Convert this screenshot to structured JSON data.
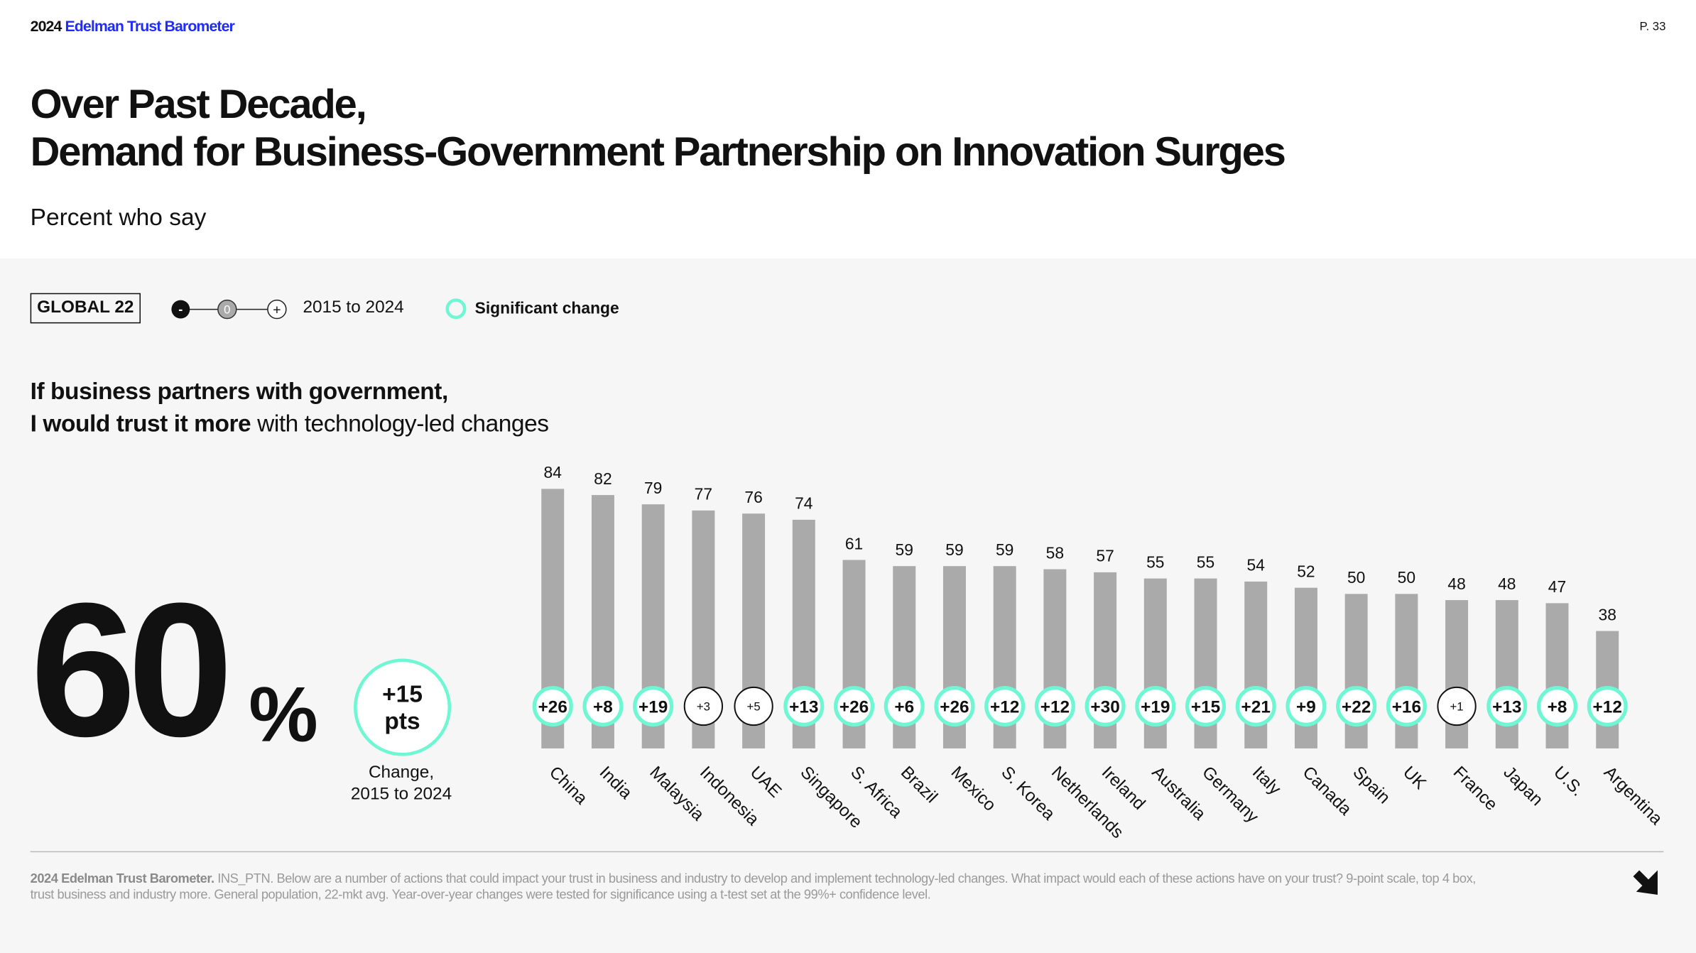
{
  "header": {
    "brand_year": "2024",
    "brand_name": "Edelman Trust Barometer",
    "page": "P. 33"
  },
  "title": {
    "line1": "Over Past Decade,",
    "line2": "Demand for Business-Government Partnership on Innovation Surges"
  },
  "subtitle": "Percent who say",
  "controls": {
    "global_label": "GLOBAL 22",
    "slider_minus": "-",
    "slider_zero": "0",
    "slider_plus": "+",
    "range_label": "2015 to 2024",
    "legend_significant": "Significant change"
  },
  "question": {
    "line1": "If business partners with government,",
    "line2_bold": "I would trust it more",
    "line2_rest": " with technology-led changes"
  },
  "global": {
    "value": "60",
    "unit": "%",
    "change_value": "+15",
    "change_unit": "pts",
    "caption_line1": "Change,",
    "caption_line2": "2015 to 2024"
  },
  "colors": {
    "bar": "#aaaaaa",
    "significant": "#6ff7d4",
    "brand": "#1f2bff"
  },
  "chart_data": {
    "type": "bar",
    "categories": [
      "China",
      "India",
      "Malaysia",
      "Indonesia",
      "UAE",
      "Singapore",
      "S. Africa",
      "Brazil",
      "Mexico",
      "S. Korea",
      "Netherlands",
      "Ireland",
      "Australia",
      "Germany",
      "Italy",
      "Canada",
      "Spain",
      "UK",
      "France",
      "Japan",
      "U.S.",
      "Argentina"
    ],
    "values": [
      84,
      82,
      79,
      77,
      76,
      74,
      61,
      59,
      59,
      59,
      58,
      57,
      55,
      55,
      54,
      52,
      50,
      50,
      48,
      48,
      47,
      38
    ],
    "changes": [
      "+26",
      "+8",
      "+19",
      "+3",
      "+5",
      "+13",
      "+26",
      "+6",
      "+26",
      "+12",
      "+12",
      "+30",
      "+19",
      "+15",
      "+21",
      "+9",
      "+22",
      "+16",
      "+1",
      "+13",
      "+8",
      "+12"
    ],
    "significant": [
      true,
      true,
      true,
      false,
      false,
      true,
      true,
      true,
      true,
      true,
      true,
      true,
      true,
      true,
      true,
      true,
      true,
      true,
      false,
      true,
      true,
      true
    ],
    "ylim": [
      0,
      100
    ]
  },
  "footer": {
    "source_bold": "2024 Edelman Trust Barometer.",
    "text": " INS_PTN. Below are a number of actions that could impact your trust in business and industry to develop and implement technology-led changes. What impact would each of these actions have on your trust? 9-point scale, top 4 box, trust business and industry more. General population, 22-mkt avg. Year-over-year changes were tested for significance using a t-test set at the 99%+ confidence level."
  }
}
